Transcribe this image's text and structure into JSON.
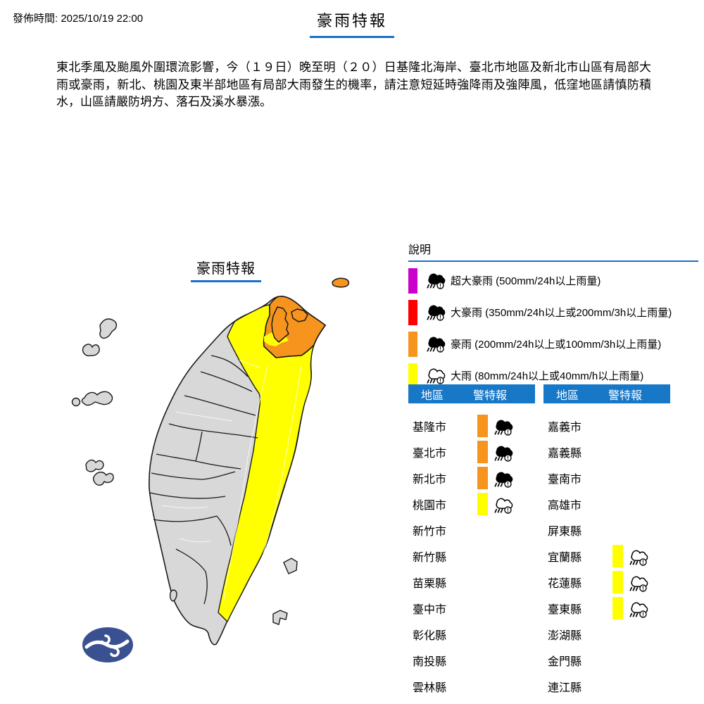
{
  "page": {
    "published_label": "發佈時間: 2025/10/19 22:00",
    "title": "豪雨特報"
  },
  "advisory_text": "東北季風及颱風外圍環流影響，今（１９日）晚至明（２０）日基隆北海岸、臺北市地區及新北市山區有局部大雨或豪雨，新北、桃園及東半部地區有局部大雨發生的機率，請注意短延時強降雨及強陣風，低窪地區請慎防積水，山區請嚴防坍方、落石及溪水暴漲。",
  "map": {
    "label": "豪雨特報",
    "orange_regions": [
      "基隆市",
      "臺北市",
      "新北市",
      "基隆嶼"
    ],
    "yellow_regions": [
      "桃園市",
      "宜蘭縣",
      "花蓮縣",
      "臺東縣"
    ]
  },
  "legend": {
    "title": "說明",
    "items": [
      {
        "color": "#cc00cc",
        "icon": "storm",
        "label": "超大豪雨 (500mm/24h以上雨量)"
      },
      {
        "color": "#ff0000",
        "icon": "storm",
        "label": "大豪雨 (350mm/24h以上或200mm/3h以上雨量)"
      },
      {
        "color": "#f7941e",
        "icon": "storm",
        "label": "豪雨 (200mm/24h以上或100mm/3h以上雨量)"
      },
      {
        "color": "#ffff00",
        "icon": "rain",
        "label": "大雨 (80mm/24h以上或40mm/h以上雨量)"
      }
    ]
  },
  "tables": {
    "headers": {
      "region": "地區",
      "warning": "警特報"
    },
    "left": [
      {
        "region": "基隆市",
        "warning": {
          "color": "#f7941e",
          "icon": "storm"
        }
      },
      {
        "region": "臺北市",
        "warning": {
          "color": "#f7941e",
          "icon": "storm"
        }
      },
      {
        "region": "新北市",
        "warning": {
          "color": "#f7941e",
          "icon": "storm"
        }
      },
      {
        "region": "桃園市",
        "warning": {
          "color": "#ffff00",
          "icon": "rain"
        }
      },
      {
        "region": "新竹市",
        "warning": null
      },
      {
        "region": "新竹縣",
        "warning": null
      },
      {
        "region": "苗栗縣",
        "warning": null
      },
      {
        "region": "臺中市",
        "warning": null
      },
      {
        "region": "彰化縣",
        "warning": null
      },
      {
        "region": "南投縣",
        "warning": null
      },
      {
        "region": "雲林縣",
        "warning": null
      }
    ],
    "right": [
      {
        "region": "嘉義市",
        "warning": null
      },
      {
        "region": "嘉義縣",
        "warning": null
      },
      {
        "region": "臺南市",
        "warning": null
      },
      {
        "region": "高雄市",
        "warning": null
      },
      {
        "region": "屏東縣",
        "warning": null
      },
      {
        "region": "宜蘭縣",
        "warning": {
          "color": "#ffff00",
          "icon": "rain"
        }
      },
      {
        "region": "花蓮縣",
        "warning": {
          "color": "#ffff00",
          "icon": "rain"
        }
      },
      {
        "region": "臺東縣",
        "warning": {
          "color": "#ffff00",
          "icon": "rain"
        }
      },
      {
        "region": "澎湖縣",
        "warning": null
      },
      {
        "region": "金門縣",
        "warning": null
      },
      {
        "region": "連江縣",
        "warning": null
      }
    ]
  },
  "colors": {
    "header_blue": "#1878c8",
    "underline_blue": "#1b6fc5",
    "orange": "#f7941e",
    "yellow": "#ffff00",
    "red": "#ff0000",
    "magenta": "#cc00cc",
    "map_gray": "#d8d8d8",
    "logo_navy": "#3a5191"
  }
}
